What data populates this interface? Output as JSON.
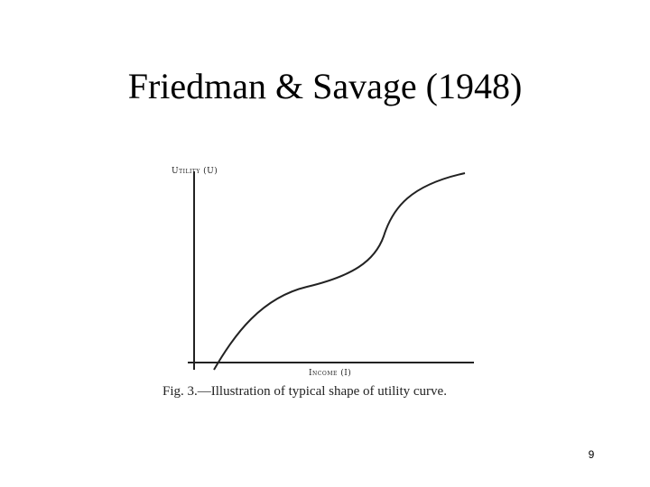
{
  "slide": {
    "title": "Friedman & Savage (1948)",
    "figure": {
      "y_axis_label": "Utility (U)",
      "x_axis_label": "Income (I)",
      "caption": "Fig. 3.—Illustration of typical shape of utility curve."
    },
    "page_number": "9"
  }
}
